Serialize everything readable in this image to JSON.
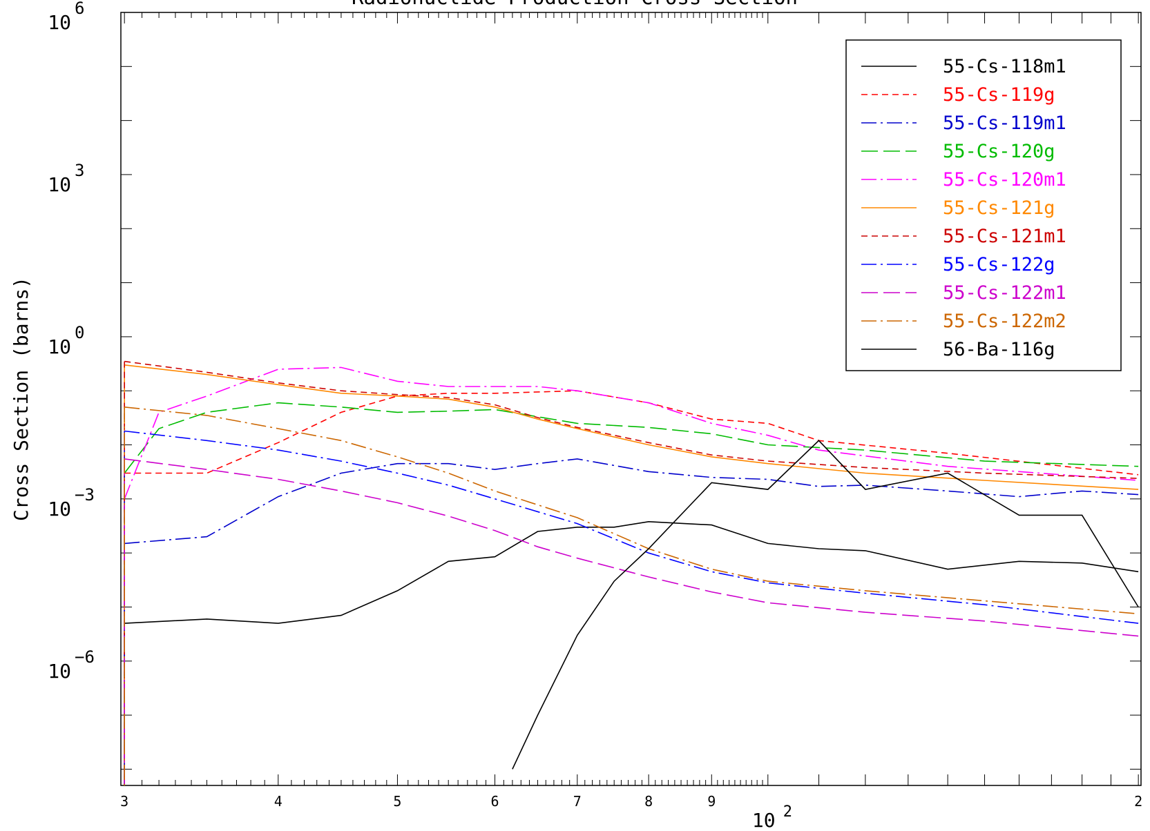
{
  "chart_data": {
    "type": "line",
    "title": "Radionuclide Production Cross Section",
    "xlabel": "",
    "ylabel": "Cross Section (barns)",
    "x_scale": "log",
    "y_scale": "log",
    "xlim": [
      29.8,
      201
    ],
    "ylim": [
      5e-09,
      1000000.0
    ],
    "grid": false,
    "legend_position": "top-right",
    "x_ticks": [
      {
        "value": 30,
        "label": "3"
      },
      {
        "value": 40,
        "label": "4"
      },
      {
        "value": 50,
        "label": "5"
      },
      {
        "value": 60,
        "label": "6"
      },
      {
        "value": 70,
        "label": "7"
      },
      {
        "value": 80,
        "label": "8"
      },
      {
        "value": 90,
        "label": "9"
      },
      {
        "value": 200,
        "label": "2"
      }
    ],
    "x_decade_label": {
      "value": 100,
      "base": "10",
      "exp": "2"
    },
    "y_ticks": [
      {
        "value": 1000000.0,
        "base": "10",
        "exp": "6"
      },
      {
        "value": 1000.0,
        "base": "10",
        "exp": "3"
      },
      {
        "value": 1,
        "base": "10",
        "exp": "0"
      },
      {
        "value": 0.001,
        "base": "10",
        "exp": "-3"
      },
      {
        "value": 1e-06,
        "base": "10",
        "exp": "-6"
      }
    ],
    "series": [
      {
        "name": "55-Cs-118m1",
        "color": "#000000",
        "dash": "solid",
        "x": [
          30,
          35,
          40,
          45,
          50,
          55,
          60,
          65,
          70,
          75,
          80,
          90,
          100,
          110,
          120,
          140,
          160,
          180,
          200
        ],
        "y": [
          5e-06,
          6e-06,
          5e-06,
          7e-06,
          2e-05,
          7e-05,
          8.5e-05,
          0.00025,
          0.0003,
          0.0003,
          0.00038,
          0.00033,
          0.00015,
          0.00012,
          0.00011,
          5e-05,
          7e-05,
          6.5e-05,
          4.5e-05
        ]
      },
      {
        "name": "55-Cs-119g",
        "color": "#ff0000",
        "dash": "short",
        "x": [
          30,
          35,
          40,
          45,
          50,
          55,
          60,
          70,
          80,
          90,
          100,
          110,
          140,
          200
        ],
        "y": [
          0.003,
          0.003,
          0.011,
          0.04,
          0.08,
          0.09,
          0.09,
          0.1,
          0.06,
          0.03,
          0.025,
          0.012,
          0.007,
          0.0028
        ]
      },
      {
        "name": "55-Cs-119m1",
        "color": "#0000cc",
        "dash": "dashdot",
        "x": [
          30,
          35,
          40,
          45,
          50,
          55,
          60,
          65,
          70,
          80,
          90,
          100,
          110,
          120,
          140,
          160,
          180,
          200
        ],
        "y": [
          0.00015,
          0.0002,
          0.0011,
          0.003,
          0.0045,
          0.0045,
          0.0035,
          0.0045,
          0.0055,
          0.0032,
          0.0025,
          0.0023,
          0.0017,
          0.0018,
          0.0014,
          0.0011,
          0.0014,
          0.0012
        ]
      },
      {
        "name": "55-Cs-120g",
        "color": "#00bb00",
        "dash": "longdash",
        "x": [
          30,
          32,
          35,
          40,
          45,
          50,
          55,
          60,
          70,
          80,
          90,
          100,
          120,
          150,
          200
        ],
        "y": [
          0.003,
          0.02,
          0.04,
          0.06,
          0.05,
          0.04,
          0.042,
          0.045,
          0.025,
          0.021,
          0.016,
          0.01,
          0.008,
          0.005,
          0.004
        ]
      },
      {
        "name": "55-Cs-120m1",
        "color": "#ff00ff",
        "dash": "dashdot",
        "x": [
          30,
          32,
          35,
          40,
          45,
          50,
          55,
          60,
          65,
          70,
          80,
          90,
          100,
          110,
          140,
          200
        ],
        "y": [
          0.001,
          0.04,
          0.08,
          0.25,
          0.27,
          0.15,
          0.12,
          0.12,
          0.12,
          0.1,
          0.06,
          0.025,
          0.015,
          0.008,
          0.004,
          0.0022
        ]
      },
      {
        "name": "55-Cs-121g",
        "color": "#ff8800",
        "dash": "solid",
        "x": [
          30,
          35,
          40,
          45,
          50,
          55,
          60,
          65,
          70,
          80,
          90,
          100,
          120,
          150,
          200
        ],
        "y": [
          0.3,
          0.2,
          0.13,
          0.09,
          0.08,
          0.07,
          0.05,
          0.03,
          0.02,
          0.01,
          0.006,
          0.0045,
          0.003,
          0.0022,
          0.0015
        ]
      },
      {
        "name": "55-Cs-121m1",
        "color": "#cc0000",
        "dash": "short",
        "x": [
          30,
          35,
          40,
          45,
          50,
          55,
          60,
          65,
          70,
          80,
          90,
          100,
          120,
          150,
          200
        ],
        "y": [
          0.35,
          0.22,
          0.14,
          0.1,
          0.085,
          0.075,
          0.055,
          0.032,
          0.021,
          0.011,
          0.0065,
          0.005,
          0.0038,
          0.003,
          0.0024
        ]
      },
      {
        "name": "55-Cs-122g",
        "color": "#0000ff",
        "dash": "dashdot",
        "x": [
          30,
          35,
          40,
          45,
          50,
          55,
          60,
          70,
          80,
          90,
          100,
          120,
          150,
          200
        ],
        "y": [
          0.018,
          0.012,
          0.008,
          0.005,
          0.003,
          0.0018,
          0.001,
          0.00035,
          0.0001,
          4.5e-05,
          2.8e-05,
          1.8e-05,
          1.1e-05,
          5e-06
        ]
      },
      {
        "name": "55-Cs-122m1",
        "color": "#cc00cc",
        "dash": "longdash",
        "x": [
          30,
          35,
          40,
          45,
          50,
          55,
          60,
          65,
          70,
          80,
          90,
          100,
          120,
          150,
          200
        ],
        "y": [
          0.0055,
          0.0035,
          0.0023,
          0.0014,
          0.00085,
          0.00048,
          0.00026,
          0.00013,
          8e-05,
          3.6e-05,
          1.9e-05,
          1.2e-05,
          8e-06,
          5.5e-06,
          2.9e-06
        ]
      },
      {
        "name": "55-Cs-122m2",
        "color": "#cc6600",
        "dash": "dashdot",
        "x": [
          30,
          35,
          40,
          45,
          50,
          55,
          60,
          70,
          80,
          90,
          100,
          120,
          150,
          200
        ],
        "y": [
          0.05,
          0.035,
          0.02,
          0.012,
          0.006,
          0.003,
          0.0014,
          0.00045,
          0.00012,
          5e-05,
          3e-05,
          2e-05,
          1.3e-05,
          7.5e-06
        ]
      },
      {
        "name": "56-Ba-116g",
        "color": "#000000",
        "dash": "solid",
        "x": [
          62,
          65,
          70,
          75,
          80,
          90,
          100,
          110,
          120,
          140,
          160,
          180,
          200
        ],
        "y": [
          1e-08,
          1e-07,
          3e-06,
          3e-05,
          0.00012,
          0.002,
          0.0015,
          0.012,
          0.0015,
          0.003,
          0.0005,
          0.0005,
          1e-05
        ]
      }
    ]
  }
}
